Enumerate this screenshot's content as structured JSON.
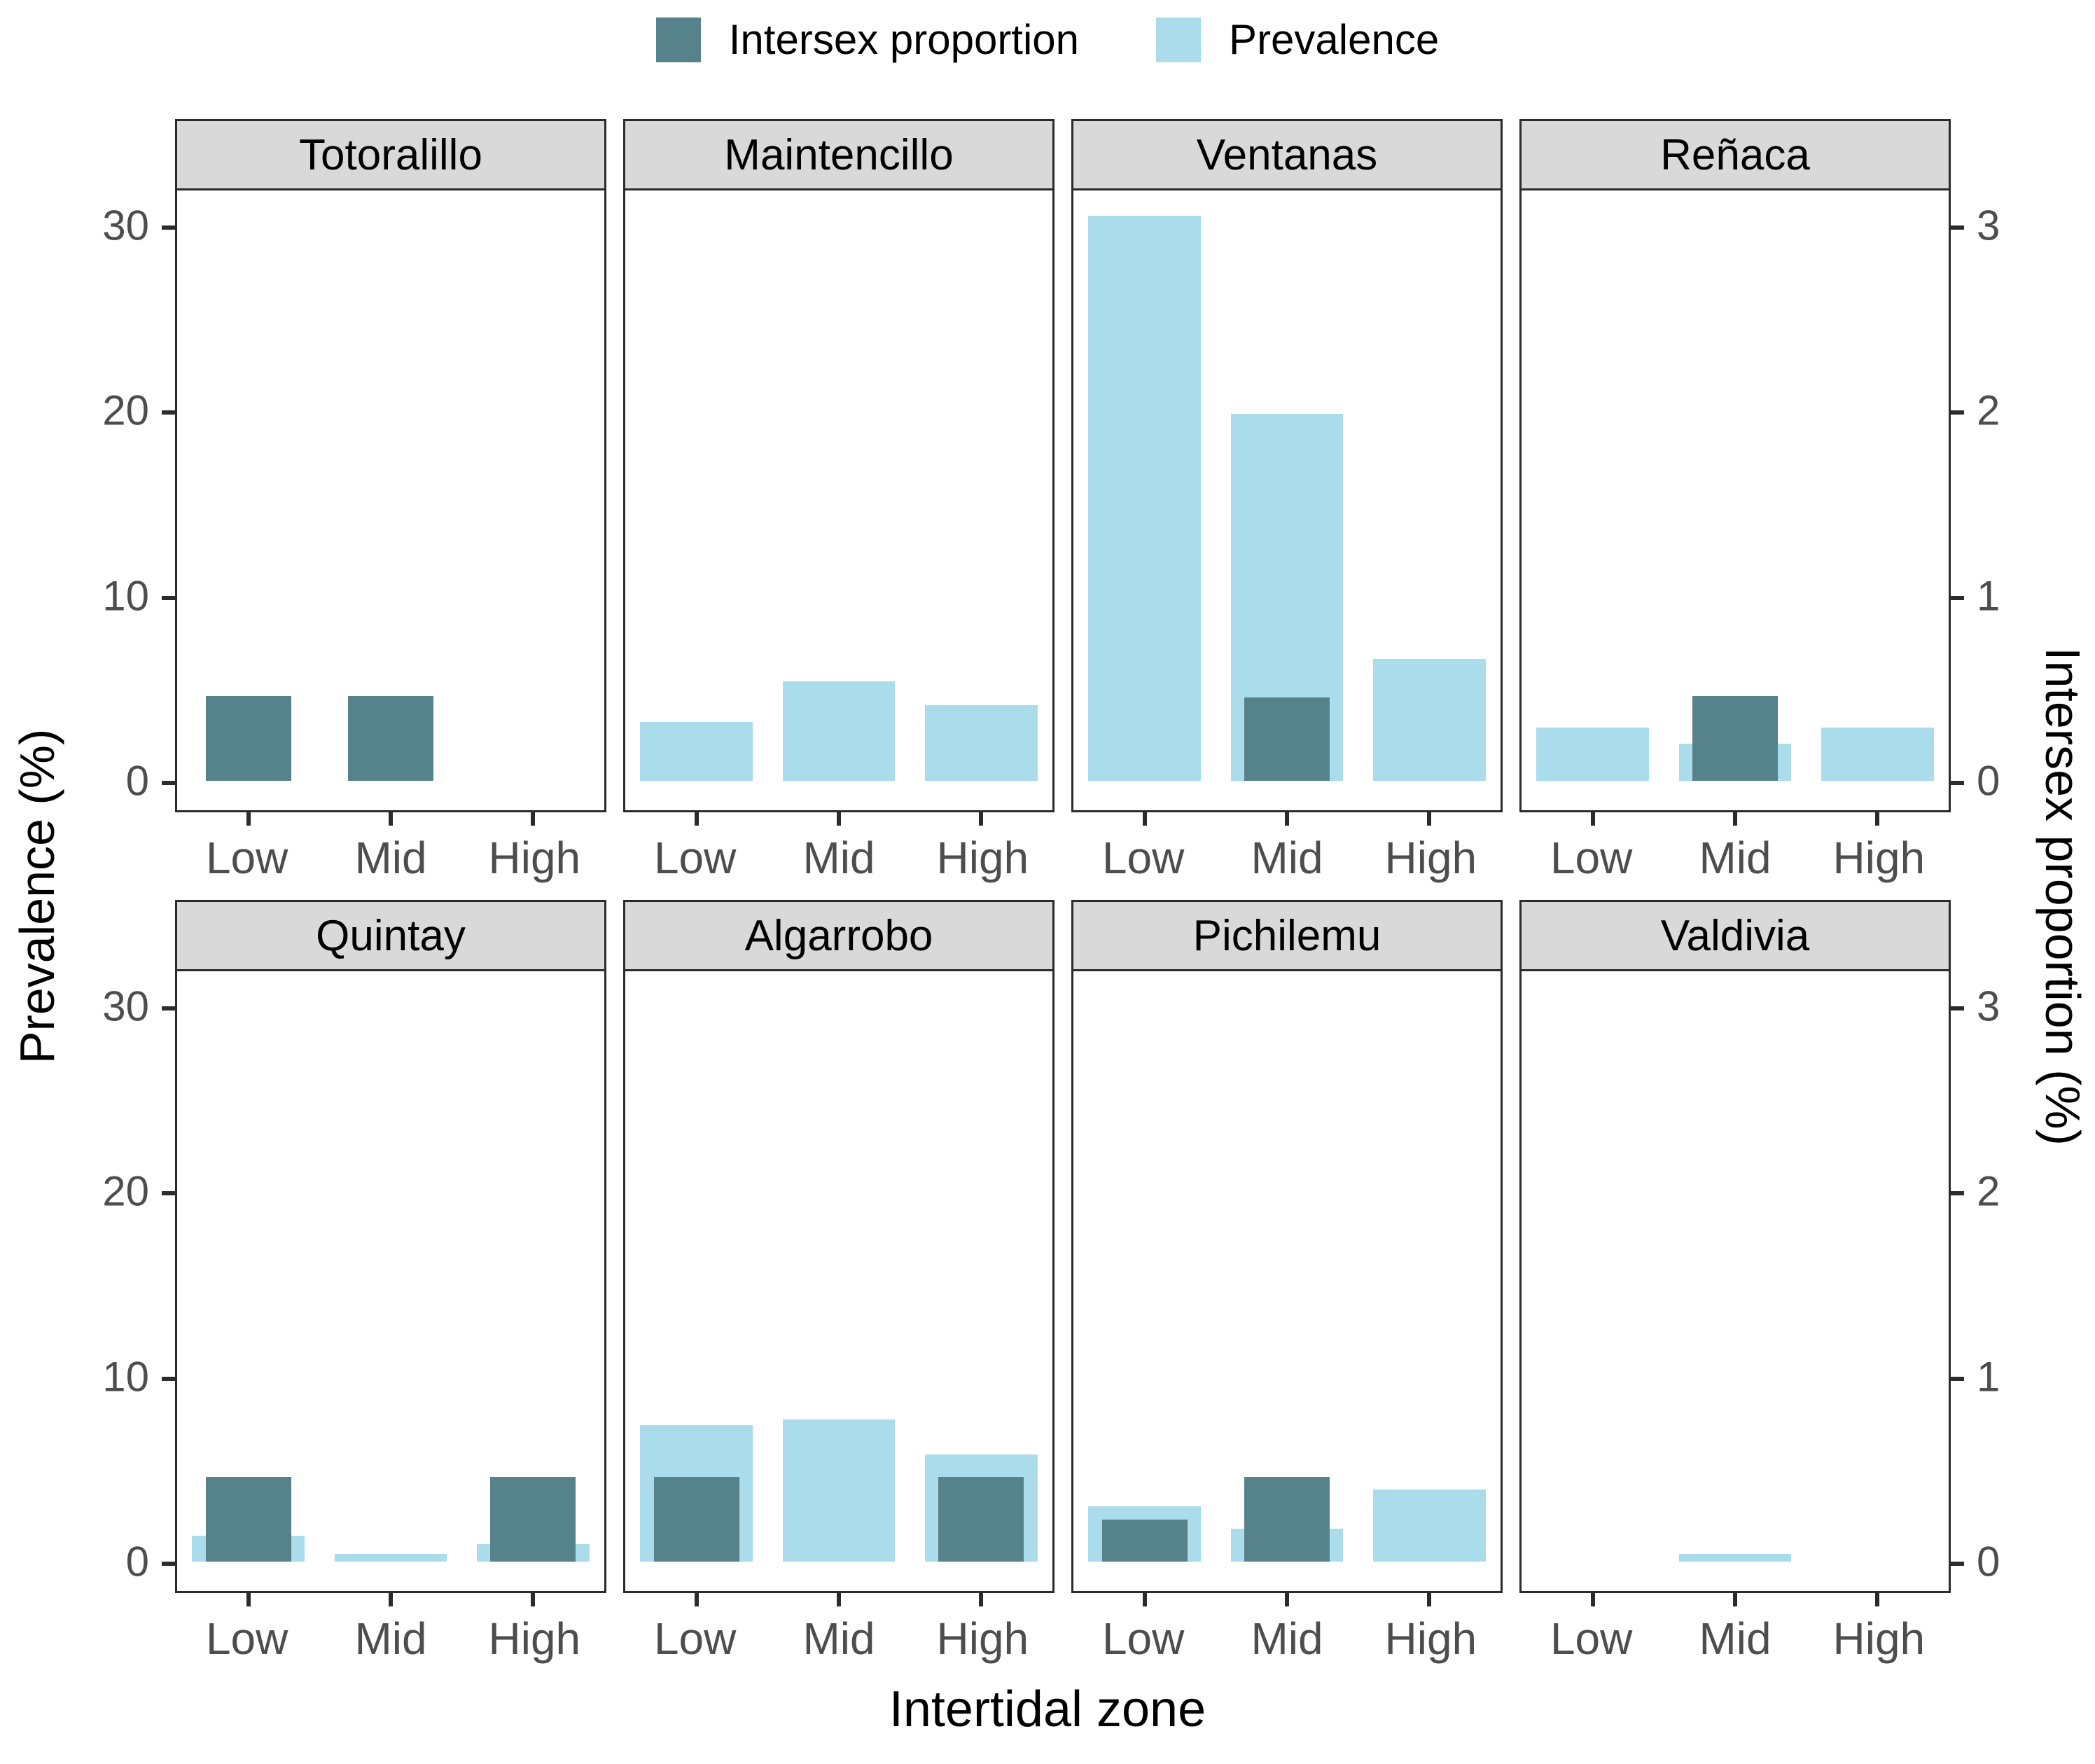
{
  "legend": {
    "intersex_label": "Intersex proportion",
    "prevalence_label": "Prevalence"
  },
  "axes": {
    "left_title": "Prevalence (%)",
    "right_title": "Intersex proportion (%)",
    "x_title": "Intertidal zone"
  },
  "colors": {
    "intersex": "#56828C",
    "prevalence": "#AADCEB",
    "strip_bg": "#D9D9D9",
    "border": "#2B2B2B",
    "tick_text": "#4D4D4D"
  },
  "chart_data": {
    "type": "bar",
    "categories": [
      "Low",
      "Mid",
      "High"
    ],
    "grid": false,
    "legend_position": "top",
    "x_axis": {
      "title": "Intertidal zone"
    },
    "left_axis": {
      "title": "Prevalence (%)",
      "ticks": [
        0,
        10,
        20,
        30
      ],
      "range": [
        0,
        31.9
      ],
      "units": "%"
    },
    "right_axis": {
      "title": "Intersex proportion (%)",
      "ticks": [
        0,
        1,
        2,
        3
      ],
      "range": [
        0,
        3.19
      ],
      "units": "%"
    },
    "series": [
      {
        "name": "Intersex proportion",
        "color": "#56828C",
        "axis": "right"
      },
      {
        "name": "Prevalence",
        "color": "#AADCEB",
        "axis": "left"
      }
    ],
    "facets": [
      {
        "site": "Totoralillo",
        "prevalence": [
          0,
          0,
          0
        ],
        "intersex": [
          0.46,
          0.46,
          0
        ]
      },
      {
        "site": "Maintencillo",
        "prevalence": [
          3.2,
          5.4,
          4.1
        ],
        "intersex": [
          0,
          0,
          0
        ]
      },
      {
        "site": "Ventanas",
        "prevalence": [
          30.5,
          19.8,
          6.6
        ],
        "intersex": [
          0,
          0.45,
          0
        ]
      },
      {
        "site": "Reñaca",
        "prevalence": [
          2.9,
          2.0,
          2.9
        ],
        "intersex": [
          0,
          0.46,
          0
        ]
      },
      {
        "site": "Quintay",
        "prevalence": [
          1.4,
          0.45,
          0.95
        ],
        "intersex": [
          0.46,
          0,
          0.46
        ]
      },
      {
        "site": "Algarrobo",
        "prevalence": [
          7.4,
          7.7,
          5.8
        ],
        "intersex": [
          0.46,
          0,
          0.46
        ]
      },
      {
        "site": "Pichilemu",
        "prevalence": [
          3.0,
          1.8,
          3.9
        ],
        "intersex": [
          0.23,
          0.46,
          0
        ]
      },
      {
        "site": "Valdivia",
        "prevalence": [
          0,
          0.45,
          0
        ],
        "intersex": [
          0,
          0,
          0
        ]
      }
    ]
  }
}
